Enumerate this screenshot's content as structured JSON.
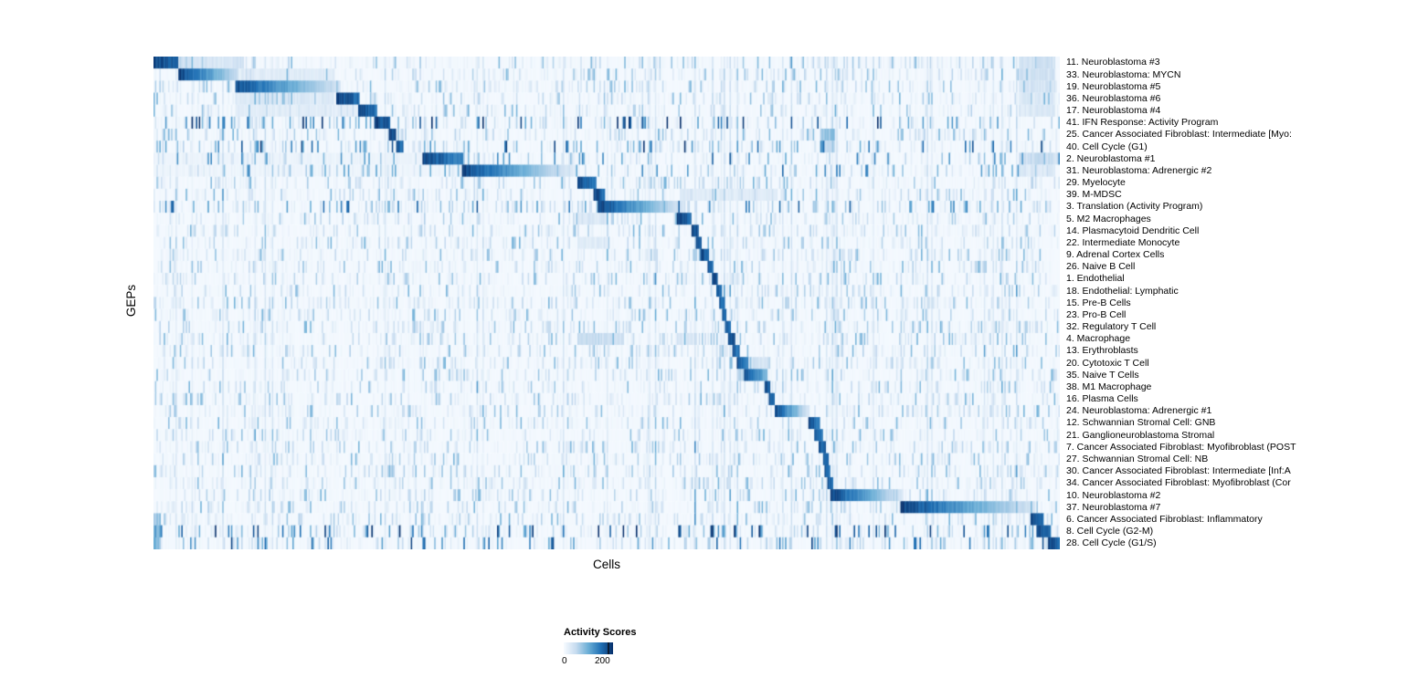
{
  "chart_data": {
    "type": "heatmap",
    "title": "",
    "xlabel": "Cells",
    "ylabel": "GEPs",
    "colorbar": {
      "title": "Activity Scores",
      "min": 0,
      "max": 200,
      "min_label": "0",
      "max_label": "200"
    },
    "colormap_stops": [
      "#f7fbff",
      "#c6dbef",
      "#6baed6",
      "#2171b5",
      "#08306b"
    ],
    "n_cols_render": 620,
    "rows": [
      {
        "label": "11. Neuroblastoma #3",
        "block": [
          0.0,
          0.028
        ],
        "peak": 1.0,
        "fade": 0.15,
        "bands": [
          [
            0.028,
            0.1,
            0.22
          ],
          [
            0.955,
            0.995,
            0.25
          ]
        ]
      },
      {
        "label": "33. Neuroblastoma: MYCN",
        "block": [
          0.028,
          0.093
        ],
        "peak": 1.0,
        "fade": 0.75,
        "bands": [
          [
            0.093,
            0.2,
            0.15
          ],
          [
            0.955,
            0.995,
            0.25
          ]
        ]
      },
      {
        "label": "19. Neuroblastoma #5",
        "block": [
          0.091,
          0.206
        ],
        "peak": 0.95,
        "fade": 0.8,
        "bands": [
          [
            0.955,
            0.995,
            0.22
          ]
        ]
      },
      {
        "label": "36. Neuroblastoma #6",
        "block": [
          0.202,
          0.228
        ],
        "peak": 1.0,
        "fade": 0.2,
        "bands": [
          [
            0.09,
            0.2,
            0.18
          ],
          [
            0.955,
            0.995,
            0.18
          ]
        ]
      },
      {
        "label": "17. Neuroblastoma #4",
        "block": [
          0.226,
          0.246
        ],
        "peak": 1.0,
        "fade": 0.2,
        "bands": [
          [
            0.09,
            0.225,
            0.13
          ],
          [
            0.955,
            0.995,
            0.18
          ]
        ]
      },
      {
        "label": "41. IFN Response: Activity Program",
        "block": [
          0.244,
          0.262
        ],
        "peak": 1.0,
        "fade": 0.15,
        "noise": 2.5
      },
      {
        "label": "25. Cancer Associated Fibroblast: Intermediate [Myo:",
        "block": [
          0.26,
          0.268
        ],
        "peak": 1.0,
        "fade": 0.1,
        "bands": [
          [
            0.735,
            0.752,
            0.5
          ]
        ]
      },
      {
        "label": "40. Cell Cycle (G1)",
        "block": [
          0.268,
          0.275
        ],
        "peak": 0.9,
        "fade": 0.1,
        "noise": 2.2,
        "bands": [
          [
            0.735,
            0.752,
            0.4
          ]
        ]
      },
      {
        "label": "2. Neuroblastoma #1",
        "block": [
          0.296,
          0.341
        ],
        "peak": 1.0,
        "fade": 0.3,
        "noise": 1.5,
        "bands": [
          [
            0.0,
            0.296,
            0.07
          ],
          [
            0.955,
            0.995,
            0.28
          ]
        ]
      },
      {
        "label": "31. Neuroblastoma: Adrenergic #2",
        "block": [
          0.341,
          0.468
        ],
        "peak": 1.0,
        "fade": 0.9,
        "noise": 1.5,
        "bands": [
          [
            0.0,
            0.34,
            0.06
          ],
          [
            0.955,
            0.995,
            0.18
          ]
        ]
      },
      {
        "label": "29. Myelocyte",
        "block": [
          0.468,
          0.488
        ],
        "peak": 1.0,
        "fade": 0.25
      },
      {
        "label": "39. M-MDSC",
        "block": [
          0.486,
          0.498
        ],
        "peak": 1.0,
        "fade": 0.15,
        "bands": [
          [
            0.58,
            0.688,
            0.16
          ]
        ]
      },
      {
        "label": "3. Translation (Activity Program)",
        "block": [
          0.491,
          0.585
        ],
        "peak": 1.0,
        "fade": 0.85,
        "noise": 1.8
      },
      {
        "label": "5. M2 Macrophages",
        "block": [
          0.577,
          0.594
        ],
        "peak": 1.0,
        "fade": 0.2,
        "bands": [
          [
            0.468,
            0.5,
            0.2
          ]
        ]
      },
      {
        "label": "14. Plasmacytoid Dendritic Cell",
        "block": [
          0.593,
          0.601
        ],
        "peak": 1.0,
        "fade": 0.1
      },
      {
        "label": "22. Intermediate Monocyte",
        "block": [
          0.598,
          0.605
        ],
        "peak": 0.95,
        "fade": 0.1,
        "bands": [
          [
            0.468,
            0.5,
            0.15
          ]
        ]
      },
      {
        "label": "9. Adrenal Cortex Cells",
        "block": [
          0.603,
          0.613
        ],
        "peak": 1.0,
        "fade": 0.15
      },
      {
        "label": "26. Naive B Cell",
        "block": [
          0.611,
          0.618
        ],
        "peak": 0.95,
        "fade": 0.1
      },
      {
        "label": "1. Endothelial",
        "block": [
          0.616,
          0.623
        ],
        "peak": 1.0,
        "fade": 0.1
      },
      {
        "label": "18. Endothelial: Lymphatic",
        "block": [
          0.621,
          0.627
        ],
        "peak": 0.9,
        "fade": 0.1
      },
      {
        "label": "15. Pre-B Cells",
        "block": [
          0.624,
          0.63
        ],
        "peak": 0.9,
        "fade": 0.1
      },
      {
        "label": "23. Pro-B Cell",
        "block": [
          0.627,
          0.633
        ],
        "peak": 0.9,
        "fade": 0.1
      },
      {
        "label": "32. Regulatory T Cell",
        "block": [
          0.63,
          0.637
        ],
        "peak": 0.9,
        "fade": 0.1
      },
      {
        "label": "4. Macrophage",
        "block": [
          0.634,
          0.642
        ],
        "peak": 1.0,
        "fade": 0.1,
        "bands": [
          [
            0.468,
            0.52,
            0.3
          ],
          [
            0.577,
            0.6,
            0.18
          ]
        ]
      },
      {
        "label": "13. Erythroblasts",
        "block": [
          0.639,
          0.646
        ],
        "peak": 0.9,
        "fade": 0.1
      },
      {
        "label": "20. Cytotoxic T Cell",
        "block": [
          0.643,
          0.657
        ],
        "peak": 1.0,
        "fade": 0.3,
        "bands": [
          [
            0.657,
            0.68,
            0.25
          ]
        ]
      },
      {
        "label": "35. Naive T Cells",
        "block": [
          0.652,
          0.678
        ],
        "peak": 0.95,
        "fade": 0.5,
        "bands": [
          [
            0.643,
            0.652,
            0.35
          ]
        ]
      },
      {
        "label": "38. M1 Macrophage",
        "block": [
          0.675,
          0.681
        ],
        "peak": 0.95,
        "fade": 0.1
      },
      {
        "label": "16. Plasma Cells",
        "block": [
          0.679,
          0.685
        ],
        "peak": 0.9,
        "fade": 0.1
      },
      {
        "label": "24. Neuroblastoma: Adrenergic #1",
        "block": [
          0.685,
          0.724
        ],
        "peak": 1.0,
        "fade": 0.85
      },
      {
        "label": "12. Schwannian Stromal Cell: GNB",
        "block": [
          0.722,
          0.735
        ],
        "peak": 1.0,
        "fade": 0.3
      },
      {
        "label": "21. Ganglioneuroblastoma Stromal",
        "block": [
          0.729,
          0.738
        ],
        "peak": 0.95,
        "fade": 0.2
      },
      {
        "label": "7. Cancer Associated Fibroblast: Myofibroblast (POST",
        "block": [
          0.734,
          0.742
        ],
        "peak": 0.95,
        "fade": 0.1
      },
      {
        "label": "27. Schwannian Stromal Cell: NB",
        "block": [
          0.739,
          0.745
        ],
        "peak": 0.9,
        "fade": 0.1
      },
      {
        "label": "30. Cancer Associated Fibroblast: Intermediate [Inf:A",
        "block": [
          0.741,
          0.747
        ],
        "peak": 0.9,
        "fade": 0.1,
        "bands": [
          [
            0.258,
            0.265,
            0.45
          ]
        ]
      },
      {
        "label": "34. Cancer Associated Fibroblast: Myofibroblast (Cor",
        "block": [
          0.744,
          0.75
        ],
        "peak": 0.9,
        "fade": 0.1
      },
      {
        "label": "10. Neuroblastoma #2",
        "block": [
          0.746,
          0.827
        ],
        "peak": 1.0,
        "fade": 0.85
      },
      {
        "label": "37. Neuroblastoma #7",
        "block": [
          0.824,
          0.972
        ],
        "peak": 1.0,
        "fade": 0.8
      },
      {
        "label": "6. Cancer Associated Fibroblast: Inflammatory",
        "block": [
          0.968,
          0.982
        ],
        "peak": 1.0,
        "fade": 0.2,
        "bands": [
          [
            0.0,
            0.008,
            0.55
          ]
        ]
      },
      {
        "label": "8. Cell Cycle (G2-M)",
        "block": [
          0.975,
          0.99
        ],
        "peak": 1.0,
        "fade": 0.2,
        "noise": 2.5,
        "bands": [
          [
            0.0,
            0.01,
            0.7
          ]
        ]
      },
      {
        "label": "28. Cell Cycle (G1/S)",
        "block": [
          0.987,
          1.0
        ],
        "peak": 1.0,
        "fade": 0.15,
        "noise": 2.0,
        "bands": [
          [
            0.0,
            0.008,
            0.55
          ]
        ]
      }
    ]
  }
}
